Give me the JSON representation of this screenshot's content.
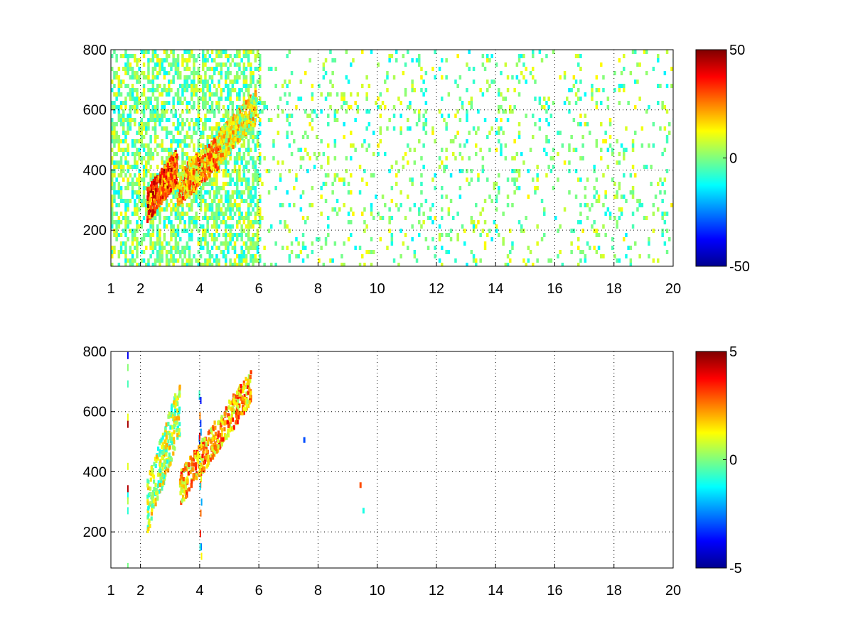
{
  "chart_data": [
    {
      "type": "heatmap",
      "title": "",
      "xlabel": "",
      "ylabel": "",
      "xlim": [
        1,
        20
      ],
      "ylim": [
        80,
        800
      ],
      "x_ticks": [
        1,
        2,
        4,
        6,
        8,
        10,
        12,
        14,
        16,
        18,
        20
      ],
      "x_tick_labels": [
        "1",
        "2",
        "4",
        "6",
        "8",
        "10",
        "12",
        "14",
        "16",
        "18",
        "20"
      ],
      "y_ticks": [
        200,
        400,
        600,
        800
      ],
      "y_tick_labels": [
        "200",
        "400",
        "600",
        "800"
      ],
      "grid": "dotted",
      "colormap": "jet",
      "clim": [
        -50,
        50
      ],
      "colorbar_ticks": [
        -50,
        0,
        50
      ],
      "colorbar_tick_labels": [
        "-50",
        "0",
        "50"
      ],
      "features": [
        {
          "kind": "ridge",
          "x_range": [
            2.2,
            3.2
          ],
          "y_range": [
            290,
            420
          ],
          "value": 30
        },
        {
          "kind": "ridge",
          "x_range": [
            3.2,
            4.6
          ],
          "y_range": [
            340,
            470
          ],
          "value": 20
        },
        {
          "kind": "ridge",
          "x_range": [
            4.6,
            5.9
          ],
          "y_range": [
            480,
            620
          ],
          "value": 10
        }
      ],
      "noise_density_low_x": 0.55,
      "noise_density_high_x": 0.12
    },
    {
      "type": "heatmap",
      "title": "",
      "xlabel": "",
      "ylabel": "",
      "xlim": [
        1,
        20
      ],
      "ylim": [
        80,
        800
      ],
      "x_ticks": [
        1,
        2,
        4,
        6,
        8,
        10,
        12,
        14,
        16,
        18,
        20
      ],
      "x_tick_labels": [
        "1",
        "2",
        "4",
        "6",
        "8",
        "10",
        "12",
        "14",
        "16",
        "18",
        "20"
      ],
      "y_ticks": [
        200,
        400,
        600,
        800
      ],
      "y_tick_labels": [
        "200",
        "400",
        "600",
        "800"
      ],
      "grid": "dotted",
      "colormap": "jet",
      "clim": [
        -5,
        5
      ],
      "colorbar_ticks": [
        -5,
        0,
        5
      ],
      "colorbar_tick_labels": [
        "-5",
        "0",
        "5"
      ],
      "features": [
        {
          "kind": "band",
          "x_range": [
            2.2,
            3.3
          ],
          "y_range": [
            290,
            620
          ],
          "value": 0.5
        },
        {
          "kind": "ridge",
          "x_range": [
            3.3,
            5.7
          ],
          "y_range": [
            350,
            690
          ],
          "value": 2
        }
      ],
      "isolated_points": [
        {
          "x": 7.5,
          "y": 515,
          "value": -3
        },
        {
          "x": 9.4,
          "y": 365,
          "value": 3
        },
        {
          "x": 9.5,
          "y": 280,
          "value": -1
        }
      ]
    }
  ]
}
